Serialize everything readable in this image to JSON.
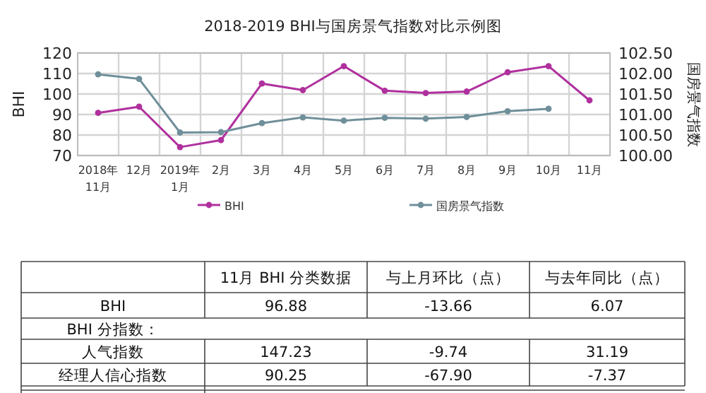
{
  "chart_data": [
    {
      "type": "line",
      "title": "2018-2019 BHI与国房景气指数对比示例图",
      "ylabel": "BHI",
      "y2label": "国房景气指数",
      "categories": [
        "2018年11月",
        "12月",
        "2019年1月",
        "2月",
        "3月",
        "4月",
        "5月",
        "6月",
        "7月",
        "8月",
        "9月",
        "10月",
        "11月"
      ],
      "series": [
        {
          "name": "BHI",
          "color": "#b0309e",
          "values": [
            90.8,
            93.8,
            74.1,
            77.5,
            105.1,
            101.9,
            113.6,
            101.6,
            100.5,
            101.2,
            110.6,
            113.6,
            96.9
          ]
        },
        {
          "name": "国房景气指数",
          "color": "#6f8f9a",
          "axis": "y2",
          "values": [
            101.98,
            101.87,
            100.56,
            100.57,
            100.79,
            100.93,
            100.85,
            100.92,
            100.9,
            100.94,
            101.08,
            101.14,
            null
          ]
        }
      ],
      "ylim": [
        70,
        120
      ],
      "yticks": [
        70,
        80,
        90,
        100,
        110,
        120
      ],
      "y2lim": [
        100,
        102.5
      ],
      "y2ticks": [
        {
          "value": 100,
          "label": "100.00"
        },
        {
          "value": 100.5,
          "label": "100.50"
        },
        {
          "value": 101,
          "label": "101.00"
        },
        {
          "value": 101.5,
          "label": "101.50"
        },
        {
          "value": 102,
          "label": "102.00"
        },
        {
          "value": 102.5,
          "label": "102.50"
        }
      ],
      "grid": true,
      "legend": "bottom",
      "marker": "circle"
    },
    {
      "type": "other",
      "annotations": [
        "11月 BHI 分类数据",
        "与上月环比（点）",
        "与去年同比（点）",
        "BHI",
        "96.88",
        "-13.66",
        "6.07",
        "BHI 分指数：",
        "人气指数",
        "147.23",
        "-9.74",
        "31.19",
        "经理人信心指数",
        "90.25",
        "-67.90",
        "-7.37"
      ]
    }
  ]
}
